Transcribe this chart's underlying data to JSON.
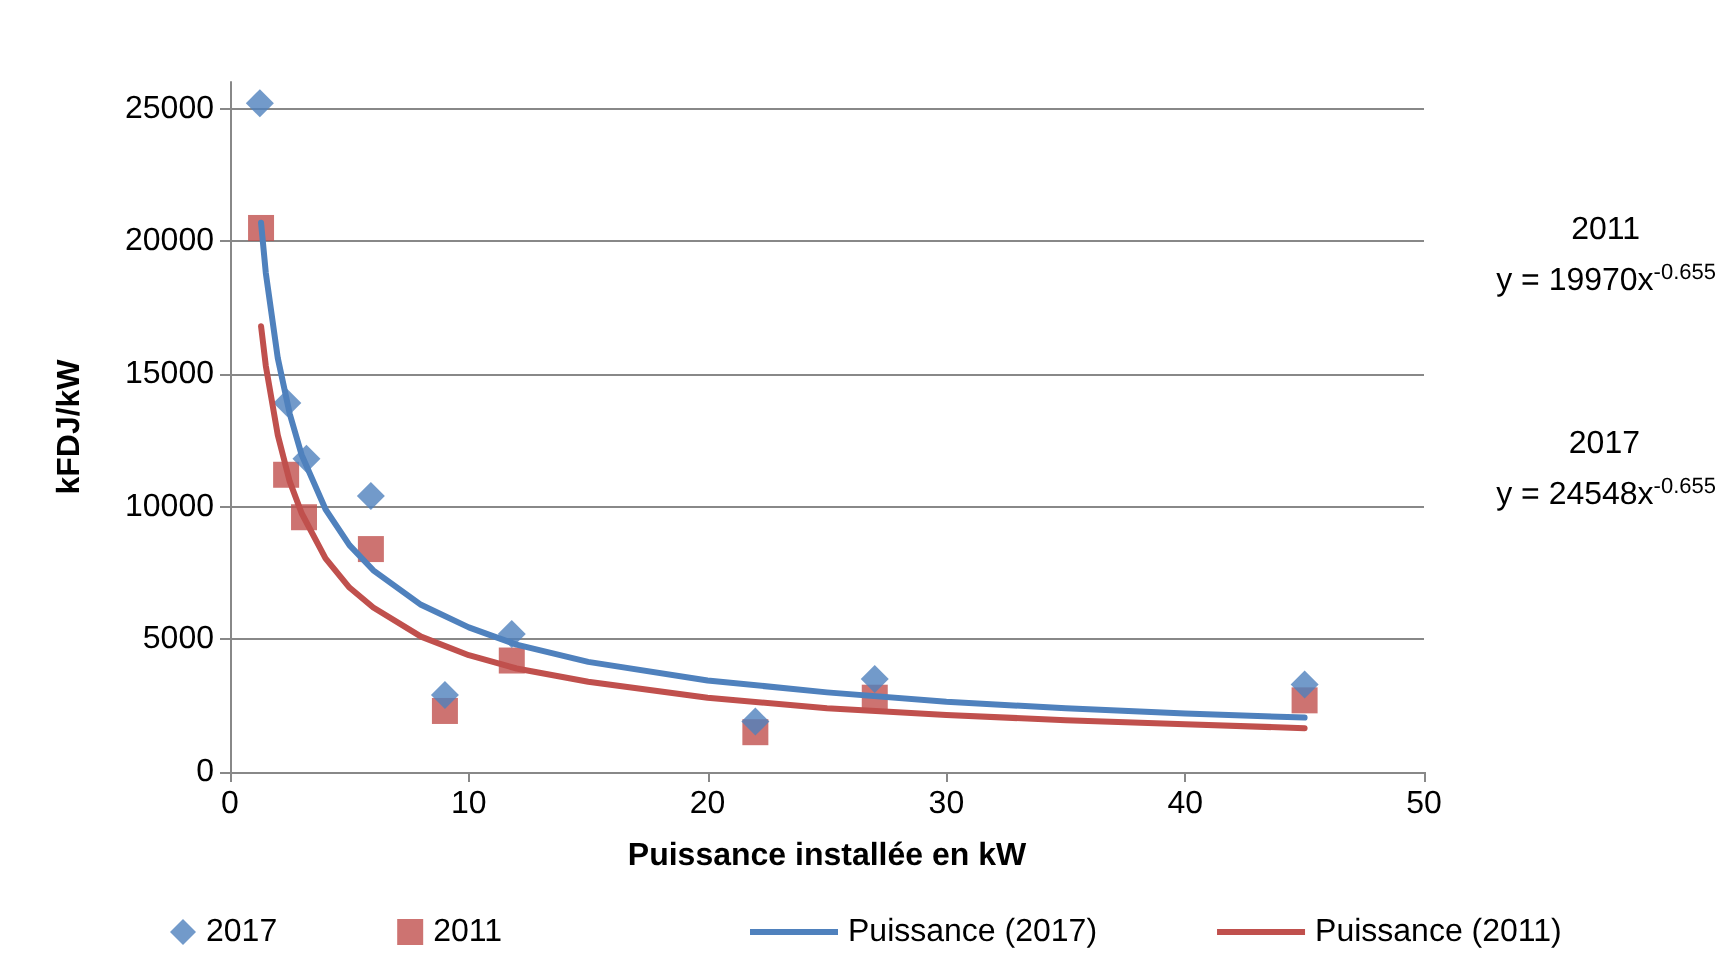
{
  "chart_data": {
    "type": "scatter",
    "xlabel": "Puissance installée en kW",
    "ylabel": "kFDJ/kW",
    "xlim": [
      0,
      50
    ],
    "xticks": [
      0,
      10,
      20,
      30,
      40,
      50
    ],
    "ylim": [
      0,
      26000
    ],
    "yticks": [
      0,
      5000,
      10000,
      15000,
      20000,
      25000
    ],
    "grid": "y",
    "legend": "bottom",
    "annotations": [
      "2011",
      "y = 19970x$^{-0.655}$",
      "2017",
      "y = 24548x$^{-0.655}$"
    ],
    "series": [
      {
        "name": "2017",
        "type": "scatter",
        "marker": "diamond",
        "color": "#4f81bd",
        "x": [
          1.25,
          2.4,
          3.2,
          5.9,
          9.0,
          11.8,
          22,
          27,
          45
        ],
        "values": [
          25200,
          13900,
          11800,
          10400,
          2900,
          5200,
          1900,
          3500,
          3300
        ]
      },
      {
        "name": "2011",
        "type": "scatter",
        "marker": "square",
        "color": "#c0504d",
        "x": [
          1.3,
          2.35,
          3.1,
          5.9,
          9.0,
          11.8,
          22,
          27,
          45
        ],
        "values": [
          20500,
          11200,
          9600,
          8400,
          2300,
          4200,
          1500,
          2800,
          2700
        ]
      },
      {
        "name": "Puissance (2017)",
        "type": "line",
        "marker": "none",
        "color": "#4f81bd",
        "x": [
          1.3,
          1.5,
          2,
          2.5,
          3,
          4,
          5,
          6,
          8,
          10,
          12,
          15,
          20,
          25,
          30,
          35,
          40,
          45
        ],
        "values": [
          20700,
          18800,
          15600,
          13500,
          11950,
          9900,
          8550,
          7600,
          6300,
          5450,
          4800,
          4150,
          3450,
          3000,
          2650,
          2400,
          2200,
          2050
        ]
      },
      {
        "name": "Puissance (2011)",
        "type": "line",
        "marker": "none",
        "color": "#c0504d",
        "x": [
          1.3,
          1.5,
          2,
          2.5,
          3,
          4,
          5,
          6,
          8,
          10,
          12,
          15,
          20,
          25,
          30,
          35,
          40,
          45
        ],
        "values": [
          16800,
          15300,
          12700,
          10950,
          9750,
          8050,
          6950,
          6200,
          5100,
          4400,
          3900,
          3400,
          2800,
          2400,
          2150,
          1950,
          1800,
          1650
        ]
      }
    ]
  }
}
